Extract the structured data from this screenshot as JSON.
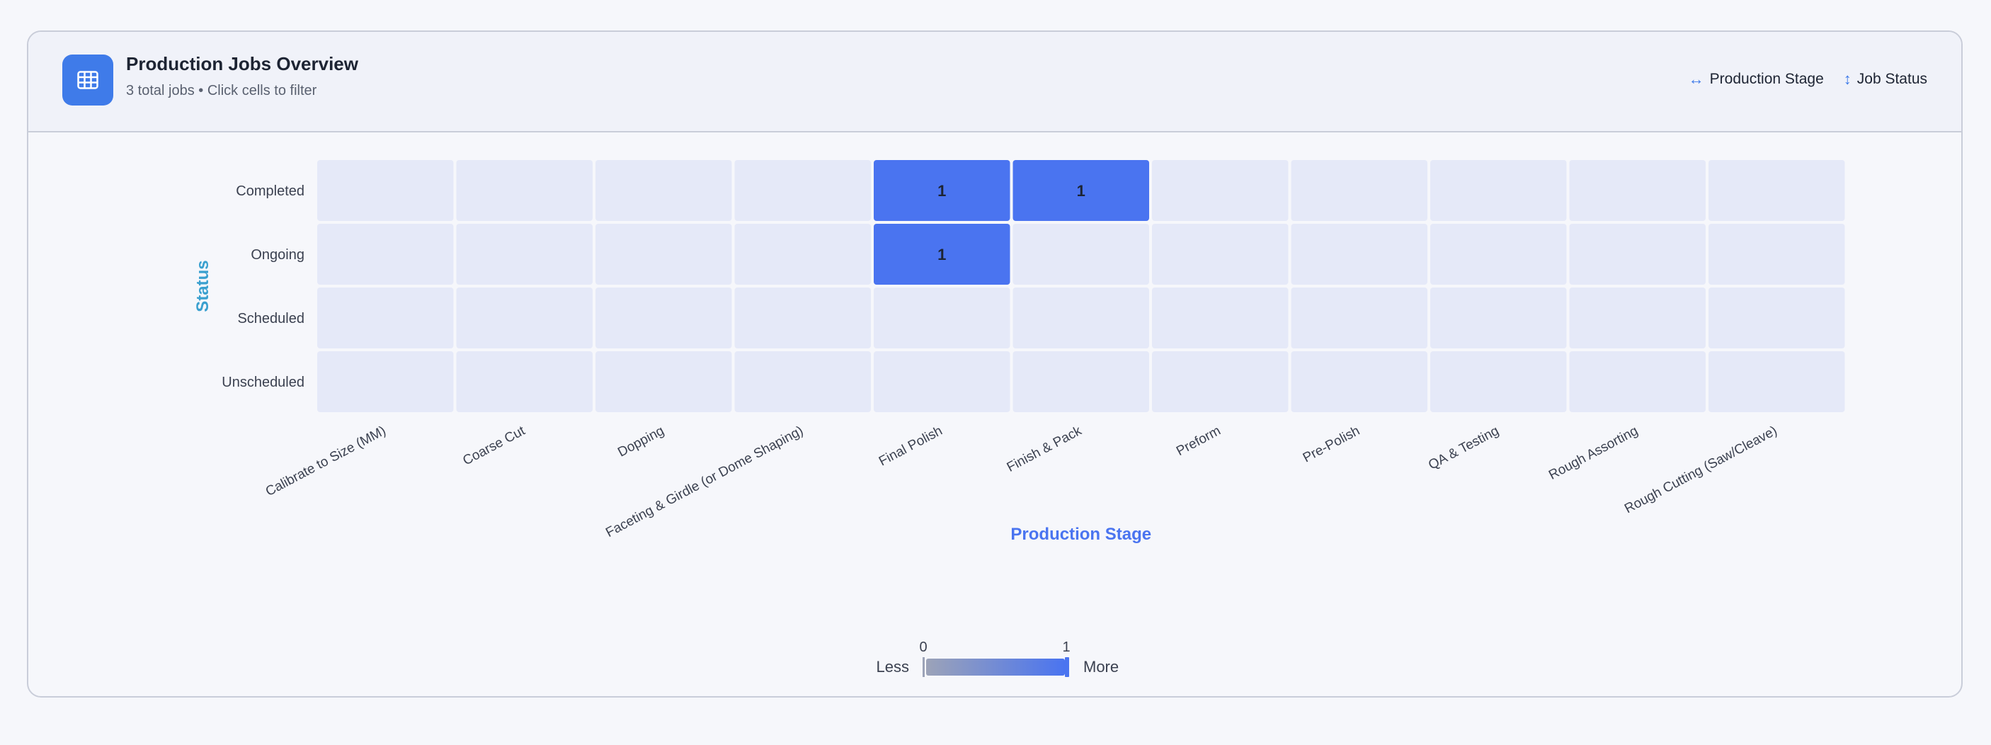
{
  "header": {
    "title": "Production Jobs Overview",
    "subtitle": "3 total jobs • Click cells to filter",
    "icon": "table-grid-icon",
    "axis_legend": {
      "x_label": "Production Stage",
      "x_icon": "horizontal-arrows-icon",
      "y_label": "Job Status",
      "y_icon": "vertical-arrows-icon"
    }
  },
  "colors": {
    "accent": "#3f7be9",
    "cell_empty": "#e5e9f8",
    "cell_max": "#4a74f0",
    "ylabel": "#3aa0cf",
    "xlabel": "#4a74f0",
    "scale_low": "#9ca3b8"
  },
  "chart_data": {
    "type": "heatmap",
    "xlabel": "Production Stage",
    "ylabel": "Status",
    "x_categories": [
      "Calibrate to Size (MM)",
      "Coarse Cut",
      "Dopping",
      "Faceting & Girdle (or Dome Shaping)",
      "Final Polish",
      "Finish & Pack",
      "Preform",
      "Pre-Polish",
      "QA & Testing",
      "Rough Assorting",
      "Rough Cutting (Saw/Cleave)"
    ],
    "y_categories": [
      "Completed",
      "Ongoing",
      "Scheduled",
      "Unscheduled"
    ],
    "values": [
      [
        0,
        0,
        0,
        0,
        1,
        1,
        0,
        0,
        0,
        0,
        0
      ],
      [
        0,
        0,
        0,
        0,
        1,
        0,
        0,
        0,
        0,
        0,
        0
      ],
      [
        0,
        0,
        0,
        0,
        0,
        0,
        0,
        0,
        0,
        0,
        0
      ],
      [
        0,
        0,
        0,
        0,
        0,
        0,
        0,
        0,
        0,
        0,
        0
      ]
    ],
    "color_scale": {
      "min": 0,
      "max": 1,
      "min_label": "0",
      "max_label": "1",
      "low_text": "Less",
      "high_text": "More"
    }
  }
}
